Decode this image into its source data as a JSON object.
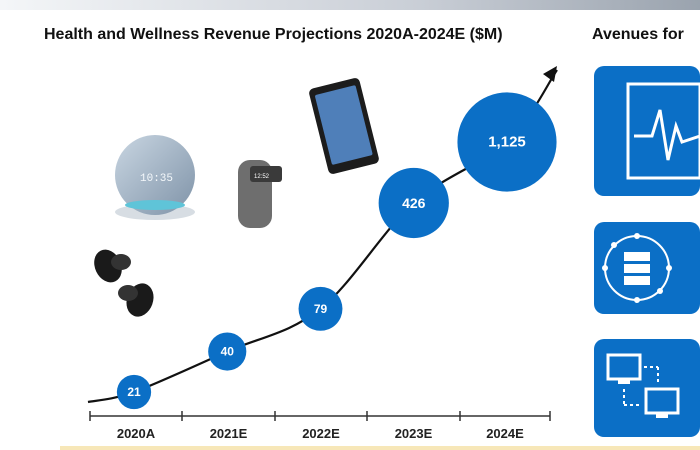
{
  "chart_title": "Health and Wellness Revenue Projections 2020A-2024E ($M)",
  "side_title": "Avenues for",
  "chart_data": {
    "type": "scatter",
    "title": "Health and Wellness Revenue Projections 2020A-2024E ($M)",
    "categories": [
      "2020A",
      "2021E",
      "2022E",
      "2023E",
      "2024E"
    ],
    "values": [
      21,
      40,
      79,
      426,
      1125
    ],
    "value_labels": [
      "21",
      "40",
      "79",
      "426",
      "1,125"
    ],
    "bubble_color": "#0b6fc6",
    "label_color": "#ffffff",
    "trend_line": "curved arrow",
    "grid": false,
    "legend": "none"
  },
  "icons": {
    "products": [
      "earbuds-icon",
      "smart-speaker-icon",
      "fitness-tracker-icon",
      "smartphone-icon"
    ],
    "side_tiles": [
      "monitor-heartbeat-icon",
      "server-network-icon",
      "connected-computers-icon"
    ]
  },
  "colors": {
    "accent": "#0b6fc6",
    "text": "#111111"
  }
}
